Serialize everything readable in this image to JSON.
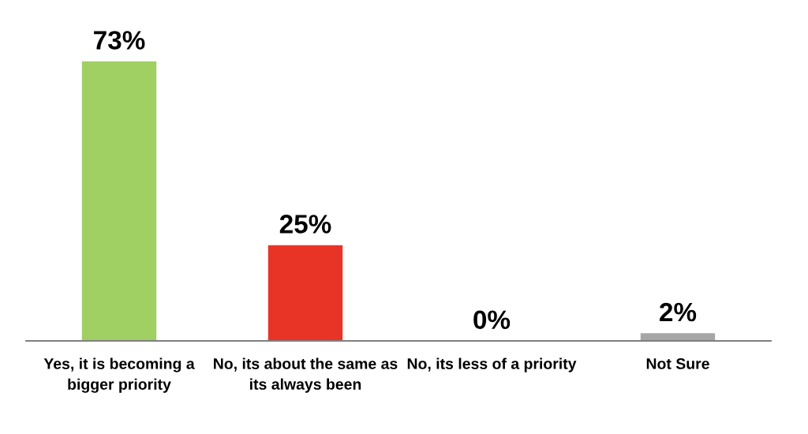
{
  "chart_data": {
    "type": "bar",
    "categories": [
      "Yes, it is becoming a\nbigger priority",
      "No, its about the same as\nits always been",
      "No, its less of a priority",
      "Not Sure"
    ],
    "values": [
      73,
      25,
      0,
      2
    ],
    "colors": [
      "#a0cf63",
      "#e83427",
      null,
      "#a6a6a6"
    ],
    "value_labels": [
      "73%",
      "25%",
      "0%",
      "2%"
    ],
    "tick_labels": "x"
  }
}
